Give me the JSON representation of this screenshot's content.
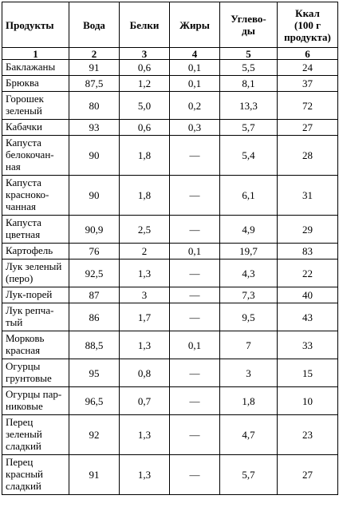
{
  "headers": [
    "Продукты",
    "Вода",
    "Белки",
    "Жиры",
    "Углево-\nды",
    "Ккал\n(100 г\nпродукта)"
  ],
  "column_numbers": [
    "1",
    "2",
    "3",
    "4",
    "5",
    "6"
  ],
  "rows": [
    {
      "name": "Баклажаны",
      "water": "91",
      "protein": "0,6",
      "fat": "0,1",
      "carbs": "5,5",
      "kcal": "24"
    },
    {
      "name": "Брюква",
      "water": "87,5",
      "protein": "1,2",
      "fat": "0,1",
      "carbs": "8,1",
      "kcal": "37"
    },
    {
      "name": "Горошек\nзеленый",
      "water": "80",
      "protein": "5,0",
      "fat": "0,2",
      "carbs": "13,3",
      "kcal": "72"
    },
    {
      "name": "Кабачки",
      "water": "93",
      "protein": "0,6",
      "fat": "0,3",
      "carbs": "5,7",
      "kcal": "27"
    },
    {
      "name": "Капуста\nбелокочан-\nная",
      "water": "90",
      "protein": "1,8",
      "fat": "—",
      "carbs": "5,4",
      "kcal": "28"
    },
    {
      "name": "Капуста\nкраснoко-\nчанная",
      "water": "90",
      "protein": "1,8",
      "fat": "—",
      "carbs": "6,1",
      "kcal": "31"
    },
    {
      "name": "Капуста\nцветная",
      "water": "90,9",
      "protein": "2,5",
      "fat": "—",
      "carbs": "4,9",
      "kcal": "29"
    },
    {
      "name": "Картофель",
      "water": "76",
      "protein": "2",
      "fat": "0,1",
      "carbs": "19,7",
      "kcal": "83"
    },
    {
      "name": "Лук зеленый\n(перо)",
      "water": "92,5",
      "protein": "1,3",
      "fat": "—",
      "carbs": "4,3",
      "kcal": "22"
    },
    {
      "name": "Лук-порей",
      "water": "87",
      "protein": "3",
      "fat": "—",
      "carbs": "7,3",
      "kcal": "40"
    },
    {
      "name": "Лук репча-\nтый",
      "water": "86",
      "protein": "1,7",
      "fat": "—",
      "carbs": "9,5",
      "kcal": "43"
    },
    {
      "name": "Морковь\nкрасная",
      "water": "88,5",
      "protein": "1,3",
      "fat": "0,1",
      "carbs": "7",
      "kcal": "33"
    },
    {
      "name": "Огурцы\nгрунтовые",
      "water": "95",
      "protein": "0,8",
      "fat": "—",
      "carbs": "3",
      "kcal": "15"
    },
    {
      "name": "Огурцы пар-\nниковые",
      "water": "96,5",
      "protein": "0,7",
      "fat": "—",
      "carbs": "1,8",
      "kcal": "10"
    },
    {
      "name": "Перец\nзеленый\nсладкий",
      "water": "92",
      "protein": "1,3",
      "fat": "—",
      "carbs": "4,7",
      "kcal": "23"
    },
    {
      "name": "Перец\nкрасный\nсладкий",
      "water": "91",
      "protein": "1,3",
      "fat": "—",
      "carbs": "5,7",
      "kcal": "27"
    }
  ]
}
